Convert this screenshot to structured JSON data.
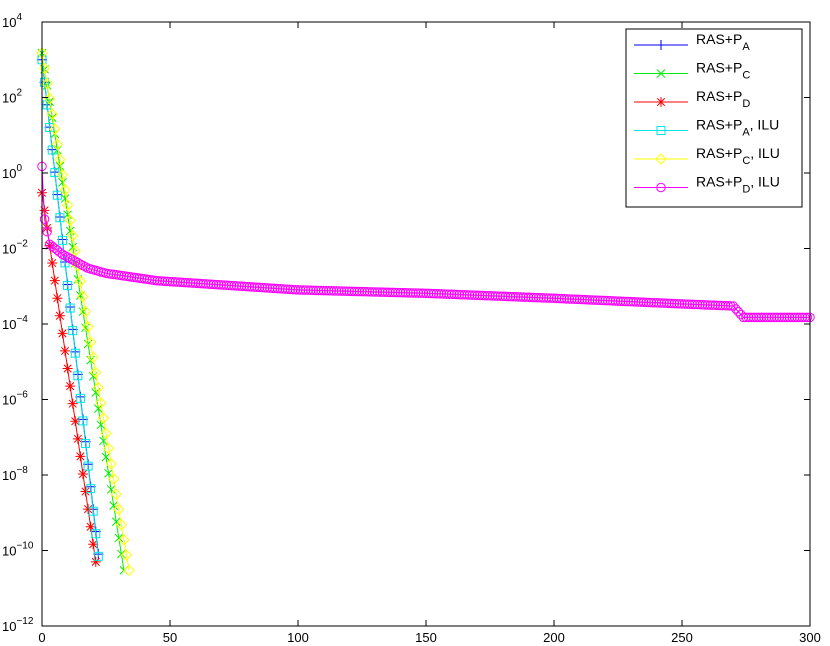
{
  "chart_data": {
    "type": "line",
    "title": "",
    "xlabel": "",
    "ylabel": "",
    "xlim": [
      0,
      300
    ],
    "ylim_log10": [
      -12,
      4
    ],
    "yscale": "log",
    "grid": false,
    "legend_placement": "top-right",
    "x_ticks": [
      "0",
      "50",
      "100",
      "150",
      "200",
      "250",
      "300"
    ],
    "y_ticks": [
      {
        "base": "10",
        "exp": "4"
      },
      {
        "base": "10",
        "exp": "2"
      },
      {
        "base": "10",
        "exp": "0"
      },
      {
        "base": "10",
        "exp": "−2"
      },
      {
        "base": "10",
        "exp": "−4"
      },
      {
        "base": "10",
        "exp": "−6"
      },
      {
        "base": "10",
        "exp": "−8"
      },
      {
        "base": "10",
        "exp": "−10"
      },
      {
        "base": "10",
        "exp": "−12"
      }
    ],
    "series": [
      {
        "name": "RAS+P_A",
        "label": {
          "main": "RAS+P",
          "sub": "A",
          "suffix": ""
        },
        "color": "#0000ff",
        "marker": "plus",
        "start": 1000.0,
        "end": 8e-11,
        "n": 23
      },
      {
        "name": "RAS+P_C",
        "label": {
          "main": "RAS+P",
          "sub": "C",
          "suffix": ""
        },
        "color": "#00ee00",
        "marker": "x",
        "start": 1500.0,
        "end": 3e-11,
        "n": 33
      },
      {
        "name": "RAS+P_D",
        "label": {
          "main": "RAS+P",
          "sub": "D",
          "suffix": ""
        },
        "color": "#ff0000",
        "marker": "star",
        "start": 0.3,
        "end": 5e-11,
        "n": 22
      },
      {
        "name": "RAS+P_A, ILU",
        "label": {
          "main": "RAS+P",
          "sub": "A",
          "suffix": ", ILU"
        },
        "color": "#00e5e5",
        "marker": "square",
        "start": 1000.0,
        "end": 7e-11,
        "n": 23
      },
      {
        "name": "RAS+P_C, ILU",
        "label": {
          "main": "RAS+P",
          "sub": "C",
          "suffix": ", ILU"
        },
        "color": "#ffff00",
        "marker": "diamond",
        "start": 1500.0,
        "end": 3e-11,
        "n": 35
      },
      {
        "name": "RAS+P_D, ILU",
        "label": {
          "main": "RAS+P",
          "sub": "D",
          "suffix": ", ILU"
        },
        "color": "#ff00ff",
        "marker": "circle",
        "knots": [
          [
            0,
            1.5
          ],
          [
            1,
            0.06
          ],
          [
            3,
            0.013
          ],
          [
            8,
            0.007
          ],
          [
            18,
            0.003
          ],
          [
            25,
            0.0022
          ],
          [
            45,
            0.0014
          ],
          [
            100,
            0.0008
          ],
          [
            150,
            0.00065
          ],
          [
            200,
            0.00048
          ],
          [
            250,
            0.00034
          ],
          [
            270,
            0.0003
          ],
          [
            274,
            0.00015
          ],
          [
            300,
            0.00015
          ]
        ],
        "n": 301
      }
    ]
  }
}
